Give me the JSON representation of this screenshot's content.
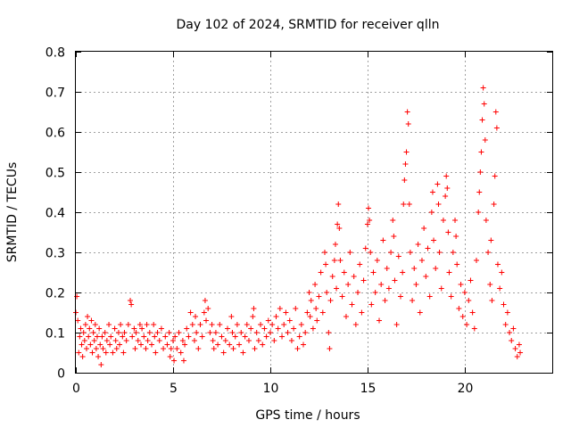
{
  "chart_data": {
    "type": "scatter",
    "title": "Day 102 of 2024, SRMTID for receiver qlln",
    "xlabel": "GPS time / hours",
    "ylabel": "SRMTID / TECUs",
    "xlim": [
      0,
      24.5
    ],
    "ylim": [
      0,
      0.8
    ],
    "xticks": [
      0,
      5,
      10,
      15,
      20
    ],
    "xtick_labels": [
      "0",
      "5",
      "10",
      "15",
      "20"
    ],
    "yticks": [
      0,
      0.1,
      0.2,
      0.3,
      0.4,
      0.5,
      0.6,
      0.7,
      0.8
    ],
    "ytick_labels": [
      "0",
      "0.1",
      "0.2",
      "0.3",
      "0.4",
      "0.5",
      "0.6",
      "0.7",
      "0.8"
    ],
    "grid": true,
    "marker": "plus",
    "color": "#ff0000",
    "series": [
      {
        "name": "SRMTID",
        "points": [
          [
            0.0,
            0.15
          ],
          [
            0.05,
            0.19
          ],
          [
            0.1,
            0.13
          ],
          [
            0.15,
            0.05
          ],
          [
            0.2,
            0.09
          ],
          [
            0.25,
            0.11
          ],
          [
            0.3,
            0.07
          ],
          [
            0.35,
            0.04
          ],
          [
            0.4,
            0.1
          ],
          [
            0.45,
            0.08
          ],
          [
            0.5,
            0.12
          ],
          [
            0.55,
            0.06
          ],
          [
            0.6,
            0.14
          ],
          [
            0.65,
            0.09
          ],
          [
            0.7,
            0.11
          ],
          [
            0.75,
            0.07
          ],
          [
            0.8,
            0.13
          ],
          [
            0.85,
            0.05
          ],
          [
            0.9,
            0.1
          ],
          [
            0.95,
            0.08
          ],
          [
            1.0,
            0.12
          ],
          [
            1.05,
            0.06
          ],
          [
            1.1,
            0.09
          ],
          [
            1.15,
            0.04
          ],
          [
            1.2,
            0.11
          ],
          [
            1.25,
            0.07
          ],
          [
            1.3,
            0.02
          ],
          [
            1.35,
            0.09
          ],
          [
            1.4,
            0.06
          ],
          [
            1.5,
            0.1
          ],
          [
            1.55,
            0.05
          ],
          [
            1.6,
            0.08
          ],
          [
            1.7,
            0.12
          ],
          [
            1.75,
            0.07
          ],
          [
            1.8,
            0.09
          ],
          [
            1.9,
            0.05
          ],
          [
            2.0,
            0.11
          ],
          [
            2.05,
            0.08
          ],
          [
            2.1,
            0.06
          ],
          [
            2.2,
            0.1
          ],
          [
            2.25,
            0.07
          ],
          [
            2.3,
            0.12
          ],
          [
            2.4,
            0.09
          ],
          [
            2.45,
            0.05
          ],
          [
            2.5,
            0.1
          ],
          [
            2.6,
            0.08
          ],
          [
            2.7,
            0.12
          ],
          [
            2.8,
            0.18
          ],
          [
            2.85,
            0.17
          ],
          [
            2.9,
            0.09
          ],
          [
            3.0,
            0.11
          ],
          [
            3.05,
            0.06
          ],
          [
            3.1,
            0.1
          ],
          [
            3.2,
            0.08
          ],
          [
            3.3,
            0.12
          ],
          [
            3.35,
            0.07
          ],
          [
            3.4,
            0.11
          ],
          [
            3.5,
            0.09
          ],
          [
            3.6,
            0.06
          ],
          [
            3.65,
            0.12
          ],
          [
            3.7,
            0.08
          ],
          [
            3.8,
            0.1
          ],
          [
            3.9,
            0.07
          ],
          [
            4.0,
            0.12
          ],
          [
            4.05,
            0.09
          ],
          [
            4.1,
            0.05
          ],
          [
            4.2,
            0.1
          ],
          [
            4.3,
            0.08
          ],
          [
            4.4,
            0.11
          ],
          [
            4.5,
            0.06
          ],
          [
            4.6,
            0.09
          ],
          [
            4.7,
            0.07
          ],
          [
            4.8,
            0.1
          ],
          [
            4.85,
            0.04
          ],
          [
            4.9,
            0.06
          ],
          [
            5.0,
            0.08
          ],
          [
            5.05,
            0.03
          ],
          [
            5.1,
            0.09
          ],
          [
            5.2,
            0.06
          ],
          [
            5.3,
            0.1
          ],
          [
            5.4,
            0.05
          ],
          [
            5.5,
            0.08
          ],
          [
            5.55,
            0.03
          ],
          [
            5.6,
            0.07
          ],
          [
            5.7,
            0.11
          ],
          [
            5.8,
            0.09
          ],
          [
            5.9,
            0.15
          ],
          [
            6.0,
            0.12
          ],
          [
            6.1,
            0.08
          ],
          [
            6.15,
            0.14
          ],
          [
            6.2,
            0.1
          ],
          [
            6.3,
            0.06
          ],
          [
            6.4,
            0.12
          ],
          [
            6.5,
            0.09
          ],
          [
            6.6,
            0.15
          ],
          [
            6.65,
            0.18
          ],
          [
            6.7,
            0.13
          ],
          [
            6.8,
            0.16
          ],
          [
            6.9,
            0.1
          ],
          [
            7.0,
            0.12
          ],
          [
            7.05,
            0.08
          ],
          [
            7.1,
            0.06
          ],
          [
            7.2,
            0.1
          ],
          [
            7.3,
            0.07
          ],
          [
            7.4,
            0.12
          ],
          [
            7.5,
            0.09
          ],
          [
            7.6,
            0.05
          ],
          [
            7.7,
            0.08
          ],
          [
            7.8,
            0.11
          ],
          [
            7.9,
            0.07
          ],
          [
            8.0,
            0.14
          ],
          [
            8.05,
            0.1
          ],
          [
            8.1,
            0.06
          ],
          [
            8.2,
            0.09
          ],
          [
            8.3,
            0.12
          ],
          [
            8.4,
            0.07
          ],
          [
            8.5,
            0.1
          ],
          [
            8.6,
            0.05
          ],
          [
            8.7,
            0.09
          ],
          [
            8.8,
            0.12
          ],
          [
            8.9,
            0.08
          ],
          [
            9.0,
            0.11
          ],
          [
            9.1,
            0.14
          ],
          [
            9.15,
            0.16
          ],
          [
            9.2,
            0.06
          ],
          [
            9.3,
            0.1
          ],
          [
            9.4,
            0.08
          ],
          [
            9.5,
            0.12
          ],
          [
            9.6,
            0.07
          ],
          [
            9.7,
            0.11
          ],
          [
            9.8,
            0.09
          ],
          [
            9.9,
            0.13
          ],
          [
            10.0,
            0.1
          ],
          [
            10.1,
            0.12
          ],
          [
            10.2,
            0.08
          ],
          [
            10.3,
            0.14
          ],
          [
            10.4,
            0.11
          ],
          [
            10.5,
            0.16
          ],
          [
            10.6,
            0.09
          ],
          [
            10.7,
            0.12
          ],
          [
            10.8,
            0.15
          ],
          [
            10.9,
            0.1
          ],
          [
            11.0,
            0.13
          ],
          [
            11.1,
            0.08
          ],
          [
            11.2,
            0.11
          ],
          [
            11.3,
            0.16
          ],
          [
            11.4,
            0.06
          ],
          [
            11.5,
            0.09
          ],
          [
            11.6,
            0.12
          ],
          [
            11.7,
            0.07
          ],
          [
            11.8,
            0.1
          ],
          [
            11.9,
            0.15
          ],
          [
            12.0,
            0.2
          ],
          [
            12.05,
            0.14
          ],
          [
            12.1,
            0.18
          ],
          [
            12.2,
            0.11
          ],
          [
            12.3,
            0.22
          ],
          [
            12.35,
            0.16
          ],
          [
            12.4,
            0.13
          ],
          [
            12.5,
            0.19
          ],
          [
            12.6,
            0.25
          ],
          [
            12.7,
            0.15
          ],
          [
            12.8,
            0.3
          ],
          [
            12.85,
            0.27
          ],
          [
            12.9,
            0.2
          ],
          [
            13.0,
            0.1
          ],
          [
            13.05,
            0.06
          ],
          [
            13.1,
            0.18
          ],
          [
            13.2,
            0.24
          ],
          [
            13.3,
            0.28
          ],
          [
            13.35,
            0.32
          ],
          [
            13.4,
            0.21
          ],
          [
            13.45,
            0.37
          ],
          [
            13.5,
            0.42
          ],
          [
            13.55,
            0.36
          ],
          [
            13.6,
            0.28
          ],
          [
            13.7,
            0.19
          ],
          [
            13.8,
            0.25
          ],
          [
            13.9,
            0.14
          ],
          [
            14.0,
            0.22
          ],
          [
            14.1,
            0.3
          ],
          [
            14.2,
            0.17
          ],
          [
            14.3,
            0.24
          ],
          [
            14.4,
            0.12
          ],
          [
            14.5,
            0.2
          ],
          [
            14.6,
            0.27
          ],
          [
            14.7,
            0.15
          ],
          [
            14.8,
            0.23
          ],
          [
            14.9,
            0.31
          ],
          [
            15.0,
            0.37
          ],
          [
            15.05,
            0.41
          ],
          [
            15.1,
            0.38
          ],
          [
            15.15,
            0.3
          ],
          [
            15.2,
            0.17
          ],
          [
            15.3,
            0.25
          ],
          [
            15.4,
            0.2
          ],
          [
            15.5,
            0.28
          ],
          [
            15.6,
            0.13
          ],
          [
            15.7,
            0.22
          ],
          [
            15.8,
            0.33
          ],
          [
            15.9,
            0.18
          ],
          [
            16.0,
            0.26
          ],
          [
            16.1,
            0.21
          ],
          [
            16.2,
            0.3
          ],
          [
            16.3,
            0.38
          ],
          [
            16.35,
            0.34
          ],
          [
            16.4,
            0.23
          ],
          [
            16.5,
            0.12
          ],
          [
            16.6,
            0.29
          ],
          [
            16.7,
            0.19
          ],
          [
            16.8,
            0.25
          ],
          [
            16.85,
            0.42
          ],
          [
            16.9,
            0.48
          ],
          [
            16.95,
            0.52
          ],
          [
            17.0,
            0.55
          ],
          [
            17.05,
            0.65
          ],
          [
            17.1,
            0.62
          ],
          [
            17.15,
            0.42
          ],
          [
            17.2,
            0.3
          ],
          [
            17.3,
            0.18
          ],
          [
            17.4,
            0.26
          ],
          [
            17.5,
            0.22
          ],
          [
            17.6,
            0.32
          ],
          [
            17.7,
            0.15
          ],
          [
            17.8,
            0.28
          ],
          [
            17.9,
            0.36
          ],
          [
            18.0,
            0.24
          ],
          [
            18.1,
            0.31
          ],
          [
            18.2,
            0.19
          ],
          [
            18.3,
            0.4
          ],
          [
            18.35,
            0.45
          ],
          [
            18.4,
            0.33
          ],
          [
            18.5,
            0.26
          ],
          [
            18.6,
            0.47
          ],
          [
            18.65,
            0.42
          ],
          [
            18.7,
            0.3
          ],
          [
            18.8,
            0.21
          ],
          [
            18.9,
            0.38
          ],
          [
            19.0,
            0.44
          ],
          [
            19.05,
            0.49
          ],
          [
            19.1,
            0.46
          ],
          [
            19.15,
            0.35
          ],
          [
            19.2,
            0.25
          ],
          [
            19.3,
            0.19
          ],
          [
            19.4,
            0.3
          ],
          [
            19.5,
            0.38
          ],
          [
            19.55,
            0.34
          ],
          [
            19.6,
            0.27
          ],
          [
            19.7,
            0.16
          ],
          [
            19.8,
            0.22
          ],
          [
            19.9,
            0.14
          ],
          [
            20.0,
            0.2
          ],
          [
            20.1,
            0.12
          ],
          [
            20.2,
            0.18
          ],
          [
            20.3,
            0.23
          ],
          [
            20.4,
            0.15
          ],
          [
            20.5,
            0.11
          ],
          [
            20.6,
            0.28
          ],
          [
            20.7,
            0.4
          ],
          [
            20.75,
            0.45
          ],
          [
            20.8,
            0.5
          ],
          [
            20.85,
            0.55
          ],
          [
            20.9,
            0.63
          ],
          [
            20.95,
            0.71
          ],
          [
            21.0,
            0.67
          ],
          [
            21.05,
            0.58
          ],
          [
            21.1,
            0.38
          ],
          [
            21.2,
            0.3
          ],
          [
            21.3,
            0.22
          ],
          [
            21.35,
            0.33
          ],
          [
            21.4,
            0.18
          ],
          [
            21.5,
            0.42
          ],
          [
            21.55,
            0.49
          ],
          [
            21.6,
            0.65
          ],
          [
            21.65,
            0.61
          ],
          [
            21.7,
            0.27
          ],
          [
            21.8,
            0.21
          ],
          [
            21.9,
            0.25
          ],
          [
            22.0,
            0.17
          ],
          [
            22.1,
            0.12
          ],
          [
            22.2,
            0.15
          ],
          [
            22.3,
            0.1
          ],
          [
            22.4,
            0.08
          ],
          [
            22.5,
            0.11
          ],
          [
            22.6,
            0.06
          ],
          [
            22.7,
            0.04
          ],
          [
            22.8,
            0.07
          ],
          [
            22.85,
            0.05
          ]
        ]
      }
    ]
  }
}
